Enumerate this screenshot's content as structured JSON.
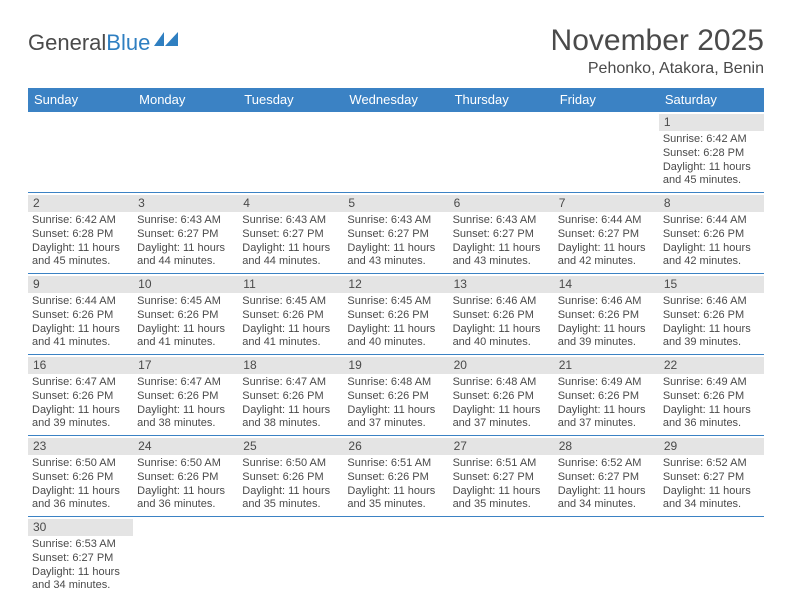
{
  "logo": {
    "part1": "General",
    "part2": "Blue"
  },
  "title": "November 2025",
  "subtitle": "Pehonko, Atakora, Benin",
  "day_headers": [
    "Sunday",
    "Monday",
    "Tuesday",
    "Wednesday",
    "Thursday",
    "Friday",
    "Saturday"
  ],
  "colors": {
    "header_bg": "#3b82c4",
    "header_text": "#ffffff",
    "daynum_bg": "#e4e4e4",
    "row_border": "#3b82c4",
    "body_text": "#4a4a4a",
    "logo_accent": "#2f7fc1"
  },
  "weeks": [
    [
      {
        "empty": true
      },
      {
        "empty": true
      },
      {
        "empty": true
      },
      {
        "empty": true
      },
      {
        "empty": true
      },
      {
        "empty": true
      },
      {
        "n": "1",
        "sr": "Sunrise: 6:42 AM",
        "ss": "Sunset: 6:28 PM",
        "d1": "Daylight: 11 hours",
        "d2": "and 45 minutes."
      }
    ],
    [
      {
        "n": "2",
        "sr": "Sunrise: 6:42 AM",
        "ss": "Sunset: 6:28 PM",
        "d1": "Daylight: 11 hours",
        "d2": "and 45 minutes."
      },
      {
        "n": "3",
        "sr": "Sunrise: 6:43 AM",
        "ss": "Sunset: 6:27 PM",
        "d1": "Daylight: 11 hours",
        "d2": "and 44 minutes."
      },
      {
        "n": "4",
        "sr": "Sunrise: 6:43 AM",
        "ss": "Sunset: 6:27 PM",
        "d1": "Daylight: 11 hours",
        "d2": "and 44 minutes."
      },
      {
        "n": "5",
        "sr": "Sunrise: 6:43 AM",
        "ss": "Sunset: 6:27 PM",
        "d1": "Daylight: 11 hours",
        "d2": "and 43 minutes."
      },
      {
        "n": "6",
        "sr": "Sunrise: 6:43 AM",
        "ss": "Sunset: 6:27 PM",
        "d1": "Daylight: 11 hours",
        "d2": "and 43 minutes."
      },
      {
        "n": "7",
        "sr": "Sunrise: 6:44 AM",
        "ss": "Sunset: 6:27 PM",
        "d1": "Daylight: 11 hours",
        "d2": "and 42 minutes."
      },
      {
        "n": "8",
        "sr": "Sunrise: 6:44 AM",
        "ss": "Sunset: 6:26 PM",
        "d1": "Daylight: 11 hours",
        "d2": "and 42 minutes."
      }
    ],
    [
      {
        "n": "9",
        "sr": "Sunrise: 6:44 AM",
        "ss": "Sunset: 6:26 PM",
        "d1": "Daylight: 11 hours",
        "d2": "and 41 minutes."
      },
      {
        "n": "10",
        "sr": "Sunrise: 6:45 AM",
        "ss": "Sunset: 6:26 PM",
        "d1": "Daylight: 11 hours",
        "d2": "and 41 minutes."
      },
      {
        "n": "11",
        "sr": "Sunrise: 6:45 AM",
        "ss": "Sunset: 6:26 PM",
        "d1": "Daylight: 11 hours",
        "d2": "and 41 minutes."
      },
      {
        "n": "12",
        "sr": "Sunrise: 6:45 AM",
        "ss": "Sunset: 6:26 PM",
        "d1": "Daylight: 11 hours",
        "d2": "and 40 minutes."
      },
      {
        "n": "13",
        "sr": "Sunrise: 6:46 AM",
        "ss": "Sunset: 6:26 PM",
        "d1": "Daylight: 11 hours",
        "d2": "and 40 minutes."
      },
      {
        "n": "14",
        "sr": "Sunrise: 6:46 AM",
        "ss": "Sunset: 6:26 PM",
        "d1": "Daylight: 11 hours",
        "d2": "and 39 minutes."
      },
      {
        "n": "15",
        "sr": "Sunrise: 6:46 AM",
        "ss": "Sunset: 6:26 PM",
        "d1": "Daylight: 11 hours",
        "d2": "and 39 minutes."
      }
    ],
    [
      {
        "n": "16",
        "sr": "Sunrise: 6:47 AM",
        "ss": "Sunset: 6:26 PM",
        "d1": "Daylight: 11 hours",
        "d2": "and 39 minutes."
      },
      {
        "n": "17",
        "sr": "Sunrise: 6:47 AM",
        "ss": "Sunset: 6:26 PM",
        "d1": "Daylight: 11 hours",
        "d2": "and 38 minutes."
      },
      {
        "n": "18",
        "sr": "Sunrise: 6:47 AM",
        "ss": "Sunset: 6:26 PM",
        "d1": "Daylight: 11 hours",
        "d2": "and 38 minutes."
      },
      {
        "n": "19",
        "sr": "Sunrise: 6:48 AM",
        "ss": "Sunset: 6:26 PM",
        "d1": "Daylight: 11 hours",
        "d2": "and 37 minutes."
      },
      {
        "n": "20",
        "sr": "Sunrise: 6:48 AM",
        "ss": "Sunset: 6:26 PM",
        "d1": "Daylight: 11 hours",
        "d2": "and 37 minutes."
      },
      {
        "n": "21",
        "sr": "Sunrise: 6:49 AM",
        "ss": "Sunset: 6:26 PM",
        "d1": "Daylight: 11 hours",
        "d2": "and 37 minutes."
      },
      {
        "n": "22",
        "sr": "Sunrise: 6:49 AM",
        "ss": "Sunset: 6:26 PM",
        "d1": "Daylight: 11 hours",
        "d2": "and 36 minutes."
      }
    ],
    [
      {
        "n": "23",
        "sr": "Sunrise: 6:50 AM",
        "ss": "Sunset: 6:26 PM",
        "d1": "Daylight: 11 hours",
        "d2": "and 36 minutes."
      },
      {
        "n": "24",
        "sr": "Sunrise: 6:50 AM",
        "ss": "Sunset: 6:26 PM",
        "d1": "Daylight: 11 hours",
        "d2": "and 36 minutes."
      },
      {
        "n": "25",
        "sr": "Sunrise: 6:50 AM",
        "ss": "Sunset: 6:26 PM",
        "d1": "Daylight: 11 hours",
        "d2": "and 35 minutes."
      },
      {
        "n": "26",
        "sr": "Sunrise: 6:51 AM",
        "ss": "Sunset: 6:26 PM",
        "d1": "Daylight: 11 hours",
        "d2": "and 35 minutes."
      },
      {
        "n": "27",
        "sr": "Sunrise: 6:51 AM",
        "ss": "Sunset: 6:27 PM",
        "d1": "Daylight: 11 hours",
        "d2": "and 35 minutes."
      },
      {
        "n": "28",
        "sr": "Sunrise: 6:52 AM",
        "ss": "Sunset: 6:27 PM",
        "d1": "Daylight: 11 hours",
        "d2": "and 34 minutes."
      },
      {
        "n": "29",
        "sr": "Sunrise: 6:52 AM",
        "ss": "Sunset: 6:27 PM",
        "d1": "Daylight: 11 hours",
        "d2": "and 34 minutes."
      }
    ],
    [
      {
        "n": "30",
        "sr": "Sunrise: 6:53 AM",
        "ss": "Sunset: 6:27 PM",
        "d1": "Daylight: 11 hours",
        "d2": "and 34 minutes."
      },
      {
        "empty": true
      },
      {
        "empty": true
      },
      {
        "empty": true
      },
      {
        "empty": true
      },
      {
        "empty": true
      },
      {
        "empty": true
      }
    ]
  ]
}
